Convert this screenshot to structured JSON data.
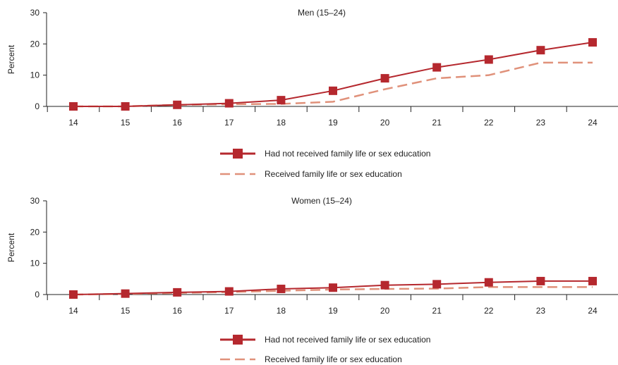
{
  "colors": {
    "not_received": "#b5282e",
    "received": "#e0917a",
    "axis": "#222222"
  },
  "chart_data": [
    {
      "type": "line",
      "title": "Men (15–24)",
      "ylabel": "Percent",
      "xlabel": "",
      "x": [
        14,
        15,
        16,
        17,
        18,
        19,
        20,
        21,
        22,
        23,
        24
      ],
      "ylim": [
        0,
        30
      ],
      "yticks": [
        0,
        10,
        20,
        30
      ],
      "grid": false,
      "legend_position": "bottom",
      "series": [
        {
          "name": "Had not received family life or sex education",
          "values": [
            0,
            0,
            0.5,
            1,
            2,
            5,
            9,
            12.5,
            15,
            18,
            20.5
          ],
          "style": "solid-square-markers"
        },
        {
          "name": "Received family life or sex education",
          "values": [
            0,
            0,
            0.5,
            0.7,
            0.8,
            1.5,
            5.5,
            9,
            10,
            14,
            14
          ],
          "style": "dashed"
        }
      ]
    },
    {
      "type": "line",
      "title": "Women (15–24)",
      "ylabel": "Percent",
      "xlabel": "",
      "x": [
        14,
        15,
        16,
        17,
        18,
        19,
        20,
        21,
        22,
        23,
        24
      ],
      "ylim": [
        0,
        30
      ],
      "yticks": [
        0,
        10,
        20,
        30
      ],
      "grid": false,
      "legend_position": "bottom",
      "series": [
        {
          "name": "Had not received family life or sex education",
          "values": [
            0,
            0.3,
            0.7,
            1,
            1.8,
            2.2,
            3,
            3.3,
            3.9,
            4.3,
            4.3
          ],
          "style": "solid-square-markers"
        },
        {
          "name": "Received family life or sex education",
          "values": [
            0,
            0.2,
            0.5,
            0.8,
            1.2,
            1.6,
            1.8,
            1.9,
            2.4,
            2.4,
            2.4
          ],
          "style": "dashed"
        }
      ]
    }
  ]
}
